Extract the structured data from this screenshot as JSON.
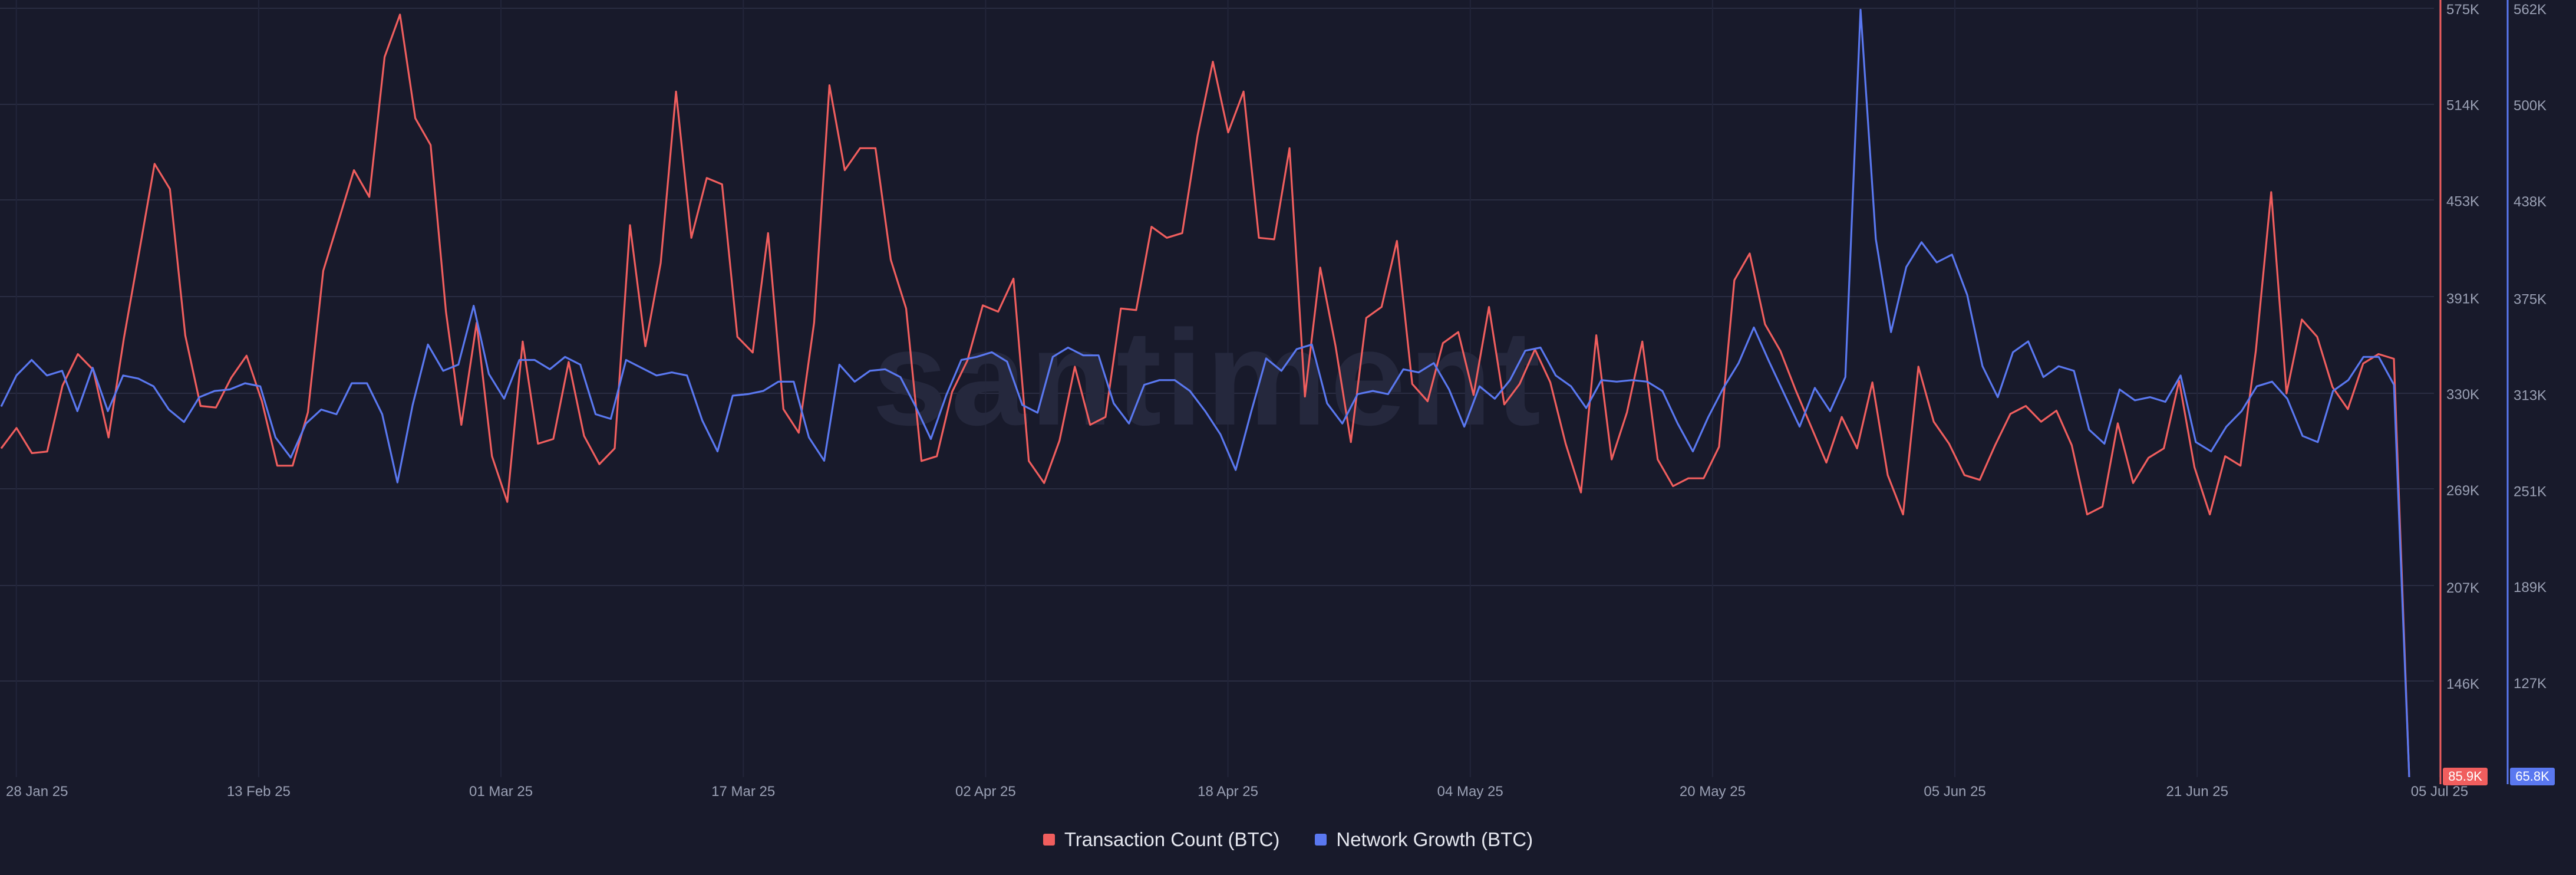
{
  "chart_data": {
    "type": "line",
    "watermark": "santiment",
    "x_tick_labels": [
      "28 Jan 25",
      "13 Feb 25",
      "01 Mar 25",
      "17 Mar 25",
      "02 Apr 25",
      "18 Apr 25",
      "04 May 25",
      "20 May 25",
      "05 Jun 25",
      "21 Jun 25",
      "05 Jul 25"
    ],
    "x_range": [
      "2025-01-27",
      "2025-07-05"
    ],
    "grid": true,
    "legend_position": "bottom-center",
    "axes": [
      {
        "id": "left",
        "side": "right",
        "series": "Transaction Count (BTC)",
        "color": "#f05e5e",
        "range": [
          85900,
          575000
        ],
        "ticks": [
          {
            "label": "575K",
            "value": 575000
          },
          {
            "label": "514K",
            "value": 514000
          },
          {
            "label": "453K",
            "value": 453000
          },
          {
            "label": "391K",
            "value": 391000
          },
          {
            "label": "330K",
            "value": 330000
          },
          {
            "label": "269K",
            "value": 269000
          },
          {
            "label": "207K",
            "value": 207000
          },
          {
            "label": "146K",
            "value": 146000
          }
        ],
        "last_value_label": "85.9K"
      },
      {
        "id": "right",
        "side": "right",
        "series": "Network Growth (BTC)",
        "color": "#5a78f0",
        "range": [
          65800,
          562000
        ],
        "ticks": [
          {
            "label": "562K",
            "value": 562000
          },
          {
            "label": "500K",
            "value": 500000
          },
          {
            "label": "438K",
            "value": 438000
          },
          {
            "label": "375K",
            "value": 375000
          },
          {
            "label": "313K",
            "value": 313000
          },
          {
            "label": "251K",
            "value": 251000
          },
          {
            "label": "189K",
            "value": 189000
          },
          {
            "label": "127K",
            "value": 127000
          }
        ],
        "last_value_label": "65.8K"
      }
    ],
    "series": [
      {
        "name": "Transaction Count (BTC)",
        "color": "#f05e5e",
        "axis": "left",
        "values": [
          295000,
          308000,
          292000,
          293000,
          335000,
          355000,
          345000,
          302000,
          365000,
          420000,
          476000,
          460000,
          367000,
          322000,
          321000,
          340000,
          354000,
          325000,
          284000,
          284000,
          318000,
          408000,
          440000,
          472000,
          455000,
          544000,
          571000,
          505000,
          488000,
          382000,
          310000,
          375000,
          290000,
          261000,
          363000,
          298000,
          301000,
          350000,
          303000,
          285000,
          295000,
          437000,
          360000,
          413000,
          522000,
          429000,
          467000,
          463000,
          366000,
          356000,
          432000,
          320000,
          305000,
          375000,
          526000,
          472000,
          486000,
          486000,
          415000,
          384000,
          287000,
          290000,
          331000,
          351000,
          386000,
          382000,
          403000,
          287000,
          273000,
          300000,
          347000,
          310000,
          315000,
          384000,
          383000,
          436000,
          429000,
          432000,
          494000,
          541000,
          496000,
          522000,
          429000,
          428000,
          486000,
          328000,
          410000,
          360000,
          299000,
          378000,
          385000,
          427000,
          336000,
          325000,
          362000,
          369000,
          329000,
          385000,
          323000,
          336000,
          358000,
          337000,
          298000,
          267000,
          367000,
          288000,
          318000,
          363000,
          288000,
          271000,
          276000,
          276000,
          296000,
          402000,
          419000,
          374000,
          357000,
          332000,
          309000,
          286000,
          315000,
          295000,
          337000,
          278000,
          253000,
          347000,
          312000,
          298000,
          278000,
          275000,
          297000,
          317000,
          322000,
          312000,
          319000,
          297000,
          253000,
          258000,
          311000,
          273000,
          289000,
          295000,
          338000,
          283000,
          253000,
          290000,
          284000,
          357000,
          458000,
          330000,
          377000,
          366000,
          334000,
          320000,
          349000,
          355000,
          352000,
          85900
        ]
      },
      {
        "name": "Network Growth (BTC)",
        "color": "#5a78f0",
        "axis": "right",
        "values": [
          305000,
          325000,
          335000,
          325000,
          328000,
          302000,
          330000,
          302000,
          325000,
          323000,
          318000,
          303000,
          295000,
          311000,
          315000,
          316000,
          320000,
          318000,
          285000,
          272000,
          294000,
          303000,
          300000,
          320000,
          320000,
          300000,
          256000,
          306000,
          345000,
          328000,
          332000,
          370000,
          326000,
          310000,
          335000,
          335000,
          329000,
          337000,
          332000,
          300000,
          297000,
          335000,
          330000,
          325000,
          327000,
          325000,
          296000,
          276000,
          312000,
          313000,
          315000,
          321000,
          321000,
          285000,
          270000,
          332000,
          321000,
          328000,
          329000,
          324000,
          305000,
          284000,
          312000,
          335000,
          337000,
          340000,
          334000,
          306000,
          301000,
          337000,
          343000,
          338000,
          338000,
          307000,
          294000,
          319000,
          322000,
          322000,
          315000,
          302000,
          287000,
          264000,
          301000,
          336000,
          328000,
          342000,
          345000,
          307000,
          294000,
          313000,
          315000,
          313000,
          329000,
          327000,
          333000,
          316000,
          292000,
          318000,
          310000,
          322000,
          341000,
          343000,
          325000,
          318000,
          304000,
          322000,
          321000,
          322000,
          321000,
          315000,
          294000,
          276000,
          298000,
          317000,
          333000,
          356000,
          334000,
          313000,
          292000,
          317000,
          302000,
          324000,
          561000,
          413000,
          353000,
          395000,
          411000,
          398000,
          403000,
          377000,
          331000,
          311000,
          340000,
          347000,
          324000,
          331000,
          328000,
          290000,
          281000,
          316000,
          309000,
          311000,
          308000,
          325000,
          282000,
          276000,
          292000,
          302000,
          318000,
          321000,
          310000,
          286000,
          282000,
          315000,
          322000,
          337000,
          337000,
          319000,
          65800
        ]
      }
    ]
  },
  "legend": [
    {
      "label": "Transaction Count (BTC)",
      "color": "#f05e5e"
    },
    {
      "label": "Network Growth (BTC)",
      "color": "#5a78f0"
    }
  ]
}
